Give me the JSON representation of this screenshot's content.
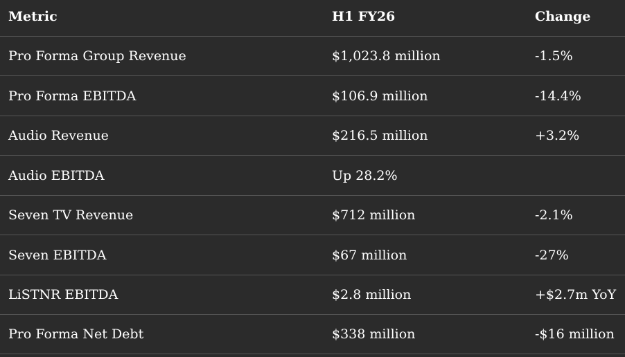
{
  "table": {
    "headers": [
      "Metric",
      "H1 FY26",
      "Change"
    ],
    "rows": [
      [
        "Pro Forma Group Revenue",
        "$1,023.8 million",
        "-1.5%"
      ],
      [
        "Pro Forma EBITDA",
        "$106.9 million",
        "-14.4%"
      ],
      [
        "Audio Revenue",
        "$216.5 million",
        "+3.2%"
      ],
      [
        "Audio EBITDA",
        "Up 28.2%",
        ""
      ],
      [
        "Seven TV Revenue",
        "$712 million",
        "-2.1%"
      ],
      [
        "Seven EBITDA",
        "$67 million",
        "-27%"
      ],
      [
        "LiSTNR EBITDA",
        "$2.8 million",
        "+$2.7m YoY"
      ],
      [
        "Pro Forma Net Debt",
        "$338 million",
        "-$16 million"
      ]
    ]
  },
  "colors": {
    "background": "#2b2b2b",
    "text": "#ffffff",
    "divider": "#555555"
  }
}
